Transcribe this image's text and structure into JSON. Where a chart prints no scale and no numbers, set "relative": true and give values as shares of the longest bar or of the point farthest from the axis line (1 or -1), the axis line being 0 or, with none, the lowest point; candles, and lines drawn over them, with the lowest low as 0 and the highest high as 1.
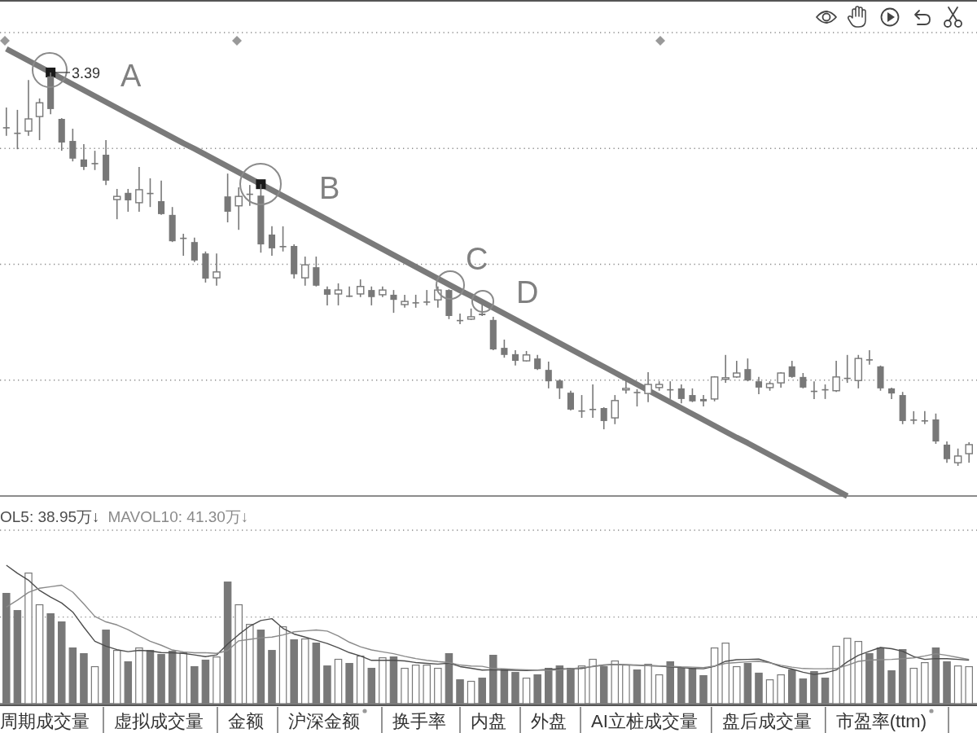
{
  "chart_data": [
    {
      "type": "candlestick",
      "color": "#787878",
      "relative": true,
      "grid": true,
      "categories": [
        null,
        null,
        null,
        null,
        null,
        null,
        null,
        null,
        null,
        null,
        null,
        null,
        null,
        null,
        null,
        null,
        null,
        null,
        null,
        null,
        null,
        null,
        null,
        null,
        null,
        null,
        null,
        null,
        null,
        null,
        null,
        null,
        null,
        null,
        null,
        null,
        null,
        null,
        null,
        null,
        null,
        null,
        null,
        null,
        null,
        null,
        null,
        null,
        null,
        null,
        null,
        null,
        null,
        null,
        null,
        null,
        null,
        null,
        null,
        null,
        null,
        null,
        null,
        null,
        null,
        null,
        null,
        null,
        null,
        null,
        null,
        null,
        null,
        null,
        null,
        null,
        null,
        null,
        null,
        null,
        null,
        null,
        null,
        null,
        null,
        null,
        null,
        null
      ],
      "ohlc": [
        [
          0.861,
          0.911,
          0.839,
          0.861
        ],
        [
          0.847,
          0.905,
          0.805,
          0.847
        ],
        [
          0.851,
          0.981,
          0.839,
          0.882
        ],
        [
          0.888,
          0.934,
          0.828,
          0.923
        ],
        [
          0.99,
          1.0,
          0.894,
          0.907
        ],
        [
          0.882,
          0.884,
          0.801,
          0.822
        ],
        [
          0.826,
          0.857,
          0.774,
          0.781
        ],
        [
          0.779,
          0.818,
          0.752,
          0.76
        ],
        [
          0.77,
          0.801,
          0.752,
          0.77
        ],
        [
          0.791,
          0.828,
          0.714,
          0.725
        ],
        [
          0.677,
          0.704,
          0.627,
          0.685
        ],
        [
          0.694,
          0.704,
          0.646,
          0.675
        ],
        [
          0.669,
          0.76,
          0.646,
          0.702
        ],
        [
          0.694,
          0.731,
          0.658,
          0.694
        ],
        [
          0.673,
          0.725,
          0.638,
          0.64
        ],
        [
          0.638,
          0.658,
          0.569,
          0.571
        ],
        [
          0.58,
          0.59,
          0.534,
          0.58
        ],
        [
          0.569,
          0.58,
          0.518,
          0.522
        ],
        [
          0.54,
          0.545,
          0.466,
          0.476
        ],
        [
          0.478,
          0.54,
          0.458,
          0.493
        ],
        [
          0.685,
          0.743,
          0.619,
          0.646
        ],
        [
          0.661,
          0.708,
          0.6,
          0.685
        ],
        [
          0.692,
          0.714,
          0.661,
          0.692
        ],
        [
          0.687,
          0.716,
          0.542,
          0.563
        ],
        [
          0.588,
          0.609,
          0.534,
          0.553
        ],
        [
          0.559,
          0.609,
          0.545,
          0.559
        ],
        [
          0.559,
          0.563,
          0.476,
          0.487
        ],
        [
          0.478,
          0.532,
          0.458,
          0.511
        ],
        [
          0.505,
          0.532,
          0.456,
          0.458
        ],
        [
          0.449,
          0.456,
          0.408,
          0.435
        ],
        [
          0.437,
          0.464,
          0.408,
          0.447
        ],
        [
          0.433,
          0.456,
          0.429,
          0.433
        ],
        [
          0.437,
          0.474,
          0.429,
          0.456
        ],
        [
          0.447,
          0.456,
          0.408,
          0.429
        ],
        [
          0.435,
          0.456,
          0.429,
          0.447
        ],
        [
          0.435,
          0.447,
          0.389,
          0.422
        ],
        [
          0.41,
          0.435,
          0.402,
          0.418
        ],
        [
          0.416,
          0.435,
          0.402,
          0.416
        ],
        [
          0.418,
          0.447,
          0.408,
          0.418
        ],
        [
          0.422,
          0.456,
          0.402,
          0.447
        ],
        [
          0.447,
          0.449,
          0.373,
          0.381
        ],
        [
          0.371,
          0.387,
          0.36,
          0.371
        ],
        [
          0.373,
          0.4,
          0.371,
          0.379
        ],
        [
          0.387,
          0.41,
          0.381,
          0.383
        ],
        [
          0.371,
          0.379,
          0.294,
          0.296
        ],
        [
          0.3,
          0.321,
          0.275,
          0.282
        ],
        [
          0.284,
          0.294,
          0.255,
          0.267
        ],
        [
          0.267,
          0.292,
          0.265,
          0.282
        ],
        [
          0.273,
          0.282,
          0.244,
          0.246
        ],
        [
          0.244,
          0.265,
          0.197,
          0.215
        ],
        [
          0.217,
          0.22,
          0.17,
          0.197
        ],
        [
          0.186,
          0.191,
          0.141,
          0.143
        ],
        [
          0.141,
          0.18,
          0.122,
          0.141
        ],
        [
          0.145,
          0.207,
          0.122,
          0.145
        ],
        [
          0.147,
          0.149,
          0.093,
          0.114
        ],
        [
          0.122,
          0.18,
          0.106,
          0.166
        ],
        [
          0.193,
          0.222,
          0.184,
          0.197
        ],
        [
          0.188,
          0.195,
          0.151,
          0.188
        ],
        [
          0.184,
          0.238,
          0.162,
          0.207
        ],
        [
          0.199,
          0.215,
          0.191,
          0.207
        ],
        [
          0.195,
          0.215,
          0.17,
          0.195
        ],
        [
          0.197,
          0.207,
          0.159,
          0.17
        ],
        [
          0.18,
          0.197,
          0.162,
          0.164
        ],
        [
          0.17,
          0.18,
          0.151,
          0.164
        ],
        [
          0.17,
          0.228,
          0.164,
          0.226
        ],
        [
          0.22,
          0.282,
          0.211,
          0.224
        ],
        [
          0.226,
          0.267,
          0.224,
          0.236
        ],
        [
          0.246,
          0.273,
          0.215,
          0.217
        ],
        [
          0.215,
          0.226,
          0.182,
          0.199
        ],
        [
          0.199,
          0.215,
          0.191,
          0.209
        ],
        [
          0.211,
          0.238,
          0.199,
          0.236
        ],
        [
          0.253,
          0.267,
          0.224,
          0.226
        ],
        [
          0.226,
          0.236,
          0.197,
          0.199
        ],
        [
          0.191,
          0.215,
          0.17,
          0.191
        ],
        [
          0.195,
          0.207,
          0.17,
          0.195
        ],
        [
          0.191,
          0.267,
          0.188,
          0.226
        ],
        [
          0.224,
          0.282,
          0.211,
          0.224
        ],
        [
          0.217,
          0.282,
          0.197,
          0.273
        ],
        [
          0.271,
          0.294,
          0.257,
          0.271
        ],
        [
          0.253,
          0.255,
          0.191,
          0.197
        ],
        [
          0.197,
          0.199,
          0.17,
          0.184
        ],
        [
          0.18,
          0.188,
          0.106,
          0.114
        ],
        [
          0.118,
          0.139,
          0.106,
          0.118
        ],
        [
          0.116,
          0.139,
          0.106,
          0.116
        ],
        [
          0.118,
          0.133,
          0.056,
          0.062
        ],
        [
          0.054,
          0.062,
          0.008,
          0.017
        ],
        [
          0.008,
          0.044,
          0.0,
          0.025
        ],
        [
          0.031,
          0.06,
          0.008,
          0.054
        ]
      ],
      "series": [
        {
          "type": "line",
          "color": "#7a7a7a",
          "values": [
            1.06,
            1.045,
            1.03,
            1.015,
            1.0,
            0.985,
            0.97,
            0.955,
            0.94,
            0.925,
            0.91,
            0.895,
            0.88,
            0.865,
            0.85,
            0.835,
            0.82,
            0.806,
            0.791,
            0.776,
            0.761,
            0.746,
            0.731,
            0.716,
            0.701,
            0.686,
            0.671,
            0.656,
            0.641,
            0.626,
            0.611,
            0.596,
            0.581,
            0.566,
            0.551,
            0.536,
            0.521,
            0.506,
            0.491,
            0.476,
            0.461,
            0.446,
            0.432,
            0.417,
            0.402,
            0.387,
            0.372,
            0.357,
            0.342,
            0.327,
            0.312,
            0.297,
            0.282,
            0.267,
            0.252,
            0.237,
            0.222,
            0.207,
            0.192,
            0.177,
            0.162,
            0.147,
            0.132,
            0.117,
            0.102,
            0.087,
            0.072,
            0.058,
            0.043,
            0.028,
            0.013,
            -0.002,
            -0.017,
            -0.032,
            -0.047,
            -0.062,
            -0.077,
            null,
            null,
            null,
            null,
            null,
            null,
            null,
            null,
            null,
            null,
            null
          ]
        },
        {
          "type": "scatter",
          "marker": "square",
          "color": "#1a1a1a",
          "values": [
            null,
            null,
            null,
            null,
            1,
            null,
            null,
            null,
            null,
            null,
            null,
            null,
            null,
            null,
            null,
            null,
            null,
            null,
            null,
            null,
            null,
            null,
            null,
            0.716,
            null,
            null,
            null,
            null,
            null,
            null,
            null,
            null,
            null,
            null,
            null,
            null,
            null,
            null,
            null,
            null,
            null,
            null,
            null,
            null,
            null,
            null,
            null,
            null,
            null,
            null,
            null,
            null,
            null,
            null,
            null,
            null,
            null,
            null,
            null,
            null,
            null,
            null,
            null,
            null,
            null,
            null,
            null,
            null,
            null,
            null,
            null,
            null,
            null,
            null,
            null,
            null,
            null,
            null,
            null,
            null,
            null,
            null,
            null,
            null,
            null,
            null,
            null,
            null
          ]
        }
      ],
      "annotations": [
        "3.39",
        "A",
        "B",
        "C",
        "D"
      ]
    },
    {
      "type": "bar",
      "color": "#787878",
      "relative": true,
      "legend": "top left",
      "ref_lines": [
        {
          "axis": "y",
          "value": 0.626,
          "line_style": "dotted",
          "color": "#8c8c8c"
        }
      ],
      "categories": [
        null,
        null,
        null,
        null,
        null,
        null,
        null,
        null,
        null,
        null,
        null,
        null,
        null,
        null,
        null,
        null,
        null,
        null,
        null,
        null,
        null,
        null,
        null,
        null,
        null,
        null,
        null,
        null,
        null,
        null,
        null,
        null,
        null,
        null,
        null,
        null,
        null,
        null,
        null,
        null,
        null,
        null,
        null,
        null,
        null,
        null,
        null,
        null,
        null,
        null,
        null,
        null,
        null,
        null,
        null,
        null,
        null,
        null,
        null,
        null,
        null,
        null,
        null,
        null,
        null,
        null,
        null,
        null,
        null,
        null,
        null,
        null,
        null,
        null,
        null,
        null,
        null,
        null,
        null,
        null,
        null,
        null,
        null,
        null,
        null,
        null,
        null,
        null
      ],
      "series": [
        {
          "values": [
            0.8,
            0.676,
            0.947,
            0.718,
            0.653,
            0.594,
            0.406,
            0.365,
            0.271,
            0.535,
            0.388,
            0.306,
            0.406,
            0.388,
            0.359,
            0.382,
            0.371,
            0.271,
            0.318,
            0.341,
            0.882,
            0.718,
            0.576,
            0.535,
            0.388,
            0.559,
            0.465,
            0.471,
            0.441,
            0.276,
            0.324,
            0.294,
            0.347,
            0.259,
            0.335,
            0.341,
            0.259,
            0.282,
            0.282,
            0.259,
            0.365,
            0.176,
            0.165,
            0.188,
            0.353,
            0.253,
            0.229,
            0.188,
            0.212,
            0.259,
            0.276,
            0.259,
            0.276,
            0.324,
            0.271,
            0.312,
            0.282,
            0.247,
            0.288,
            0.212,
            0.306,
            0.259,
            0.259,
            0.206,
            0.406,
            0.441,
            0.271,
            0.294,
            0.224,
            0.176,
            0.212,
            0.247,
            0.182,
            0.235,
            0.188,
            0.418,
            0.476,
            0.453,
            0.365,
            0.406,
            0.241,
            0.394,
            0.259,
            0.3,
            0.406,
            0.306,
            0.276,
            0.271
          ],
          "colors": [
            "#787878",
            "#787878",
            "#ffffff",
            "#ffffff",
            "#787878",
            "#787878",
            "#787878",
            "#787878",
            "#ffffff",
            "#787878",
            "#ffffff",
            "#787878",
            "#ffffff",
            "#787878",
            "#787878",
            "#787878",
            "#ffffff",
            "#787878",
            "#787878",
            "#ffffff",
            "#787878",
            "#ffffff",
            "#ffffff",
            "#787878",
            "#787878",
            "#ffffff",
            "#787878",
            "#ffffff",
            "#787878",
            "#787878",
            "#ffffff",
            "#787878",
            "#ffffff",
            "#787878",
            "#ffffff",
            "#787878",
            "#ffffff",
            "#ffffff",
            "#ffffff",
            "#ffffff",
            "#787878",
            "#787878",
            "#ffffff",
            "#787878",
            "#787878",
            "#787878",
            "#787878",
            "#ffffff",
            "#787878",
            "#787878",
            "#787878",
            "#787878",
            "#ffffff",
            "#ffffff",
            "#787878",
            "#ffffff",
            "#ffffff",
            "#787878",
            "#ffffff",
            "#ffffff",
            "#787878",
            "#787878",
            "#787878",
            "#787878",
            "#ffffff",
            "#ffffff",
            "#ffffff",
            "#787878",
            "#787878",
            "#ffffff",
            "#ffffff",
            "#787878",
            "#787878",
            "#787878",
            "#787878",
            "#ffffff",
            "#ffffff",
            "#ffffff",
            "#787878",
            "#787878",
            "#787878",
            "#787878",
            "#ffffff",
            "#ffffff",
            "#787878",
            "#787878",
            "#ffffff",
            "#ffffff"
          ]
        },
        {
          "type": "line",
          "name": "OL5: 38.95万↓",
          "color": "#4d4d4d",
          "values": [
            1.0,
            0.942,
            0.892,
            0.818,
            0.77,
            0.727,
            0.662,
            0.553,
            0.451,
            0.415,
            0.39,
            0.376,
            0.385,
            0.381,
            0.369,
            0.368,
            0.363,
            0.352,
            0.34,
            0.352,
            0.431,
            0.499,
            0.56,
            0.601,
            0.614,
            0.544,
            0.503,
            0.481,
            0.458,
            0.435,
            0.404,
            0.369,
            0.345,
            0.313,
            0.313,
            0.313,
            0.309,
            0.297,
            0.291,
            0.286,
            0.293,
            0.268,
            0.256,
            0.243,
            0.245,
            0.243,
            0.241,
            0.24,
            0.243,
            0.248,
            0.252,
            0.252,
            0.254,
            0.27,
            0.279,
            0.284,
            0.281,
            0.277,
            0.275,
            0.272,
            0.266,
            0.261,
            0.254,
            0.252,
            0.27,
            0.306,
            0.318,
            0.32,
            0.322,
            0.297,
            0.268,
            0.25,
            0.227,
            0.211,
            0.222,
            0.243,
            0.302,
            0.349,
            0.379,
            0.406,
            0.397,
            0.379,
            0.34,
            0.32,
            0.326,
            0.325,
            0.32,
            0.315
          ]
        },
        {
          "type": "line",
          "name": "MAVOL10: 41.30万↓",
          "color": "#8a8a8a",
          "values": [
            0.698,
            0.748,
            0.804,
            0.834,
            0.845,
            0.856,
            0.806,
            0.721,
            0.63,
            0.591,
            0.569,
            0.535,
            0.492,
            0.451,
            0.422,
            0.388,
            0.374,
            0.368,
            0.368,
            0.363,
            0.384,
            0.454,
            0.465,
            0.476,
            0.481,
            0.496,
            0.519,
            0.526,
            0.532,
            0.524,
            0.489,
            0.444,
            0.411,
            0.388,
            0.374,
            0.361,
            0.342,
            0.326,
            0.313,
            0.304,
            0.297,
            0.279,
            0.272,
            0.27,
            0.254,
            0.252,
            0.248,
            0.245,
            0.243,
            0.241,
            0.245,
            0.252,
            0.261,
            0.268,
            0.277,
            0.284,
            0.281,
            0.279,
            0.275,
            0.272,
            0.27,
            0.266,
            0.264,
            0.261,
            0.272,
            0.291,
            0.297,
            0.302,
            0.306,
            0.295,
            0.277,
            0.264,
            0.254,
            0.252,
            0.252,
            0.254,
            0.277,
            0.306,
            0.315,
            0.318,
            0.32,
            0.325,
            0.331,
            0.345,
            0.361,
            0.349,
            0.334,
            0.32
          ]
        }
      ],
      "annotations": [
        "周期成交量",
        "虚拟成交量",
        "金额",
        "沪深金额",
        "换手率",
        "内盘",
        "外盘",
        "AI立桩成交量",
        "盘后成交量",
        "市盈率(ttm)"
      ]
    }
  ]
}
